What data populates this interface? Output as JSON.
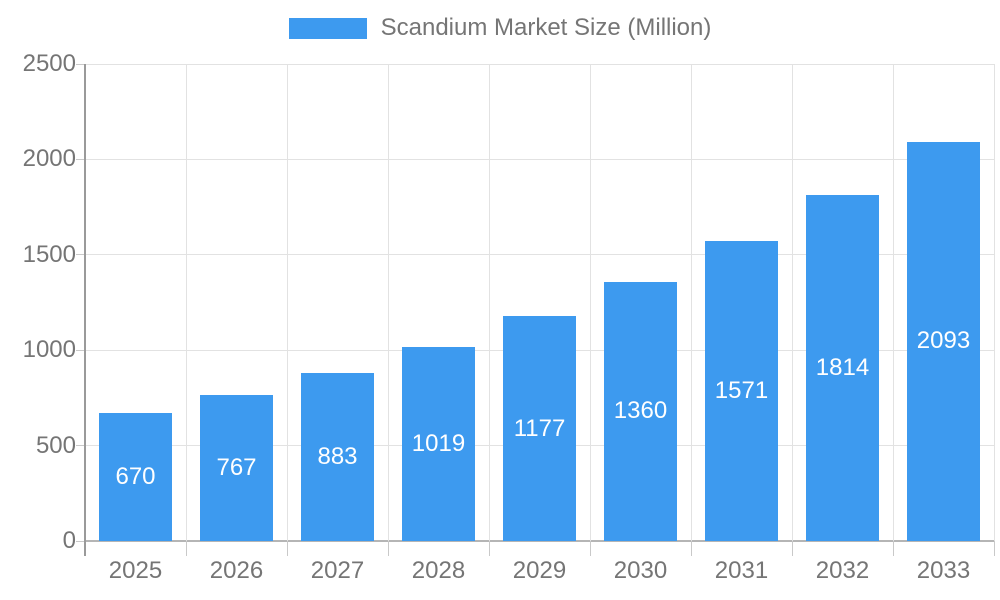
{
  "legend": {
    "label": "Scandium Market Size (Million)"
  },
  "chart_data": {
    "type": "bar",
    "title": "Scandium Market Size (Million)",
    "categories": [
      "2025",
      "2026",
      "2027",
      "2028",
      "2029",
      "2030",
      "2031",
      "2032",
      "2033"
    ],
    "series": [
      {
        "name": "Scandium Market Size (Million)",
        "values": [
          670,
          767,
          883,
          1019,
          1177,
          1360,
          1571,
          1814,
          2093
        ]
      }
    ],
    "xlabel": "",
    "ylabel": "",
    "ylim": [
      0,
      2500
    ],
    "y_ticks": [
      0,
      500,
      1000,
      1500,
      2000,
      2500
    ],
    "grid": true,
    "legend_position": "top-center",
    "bar_labels_visible": true,
    "colors": {
      "bar_fill": "#3d9aef",
      "bar_value_text": "#ffffff",
      "axis_text": "#757575",
      "gridline": "#e2e2e2",
      "baseline": "#b5b5b5",
      "yaxis_line": "#9a9a9a",
      "tick": "#c9c9c9",
      "background": "#ffffff"
    }
  }
}
